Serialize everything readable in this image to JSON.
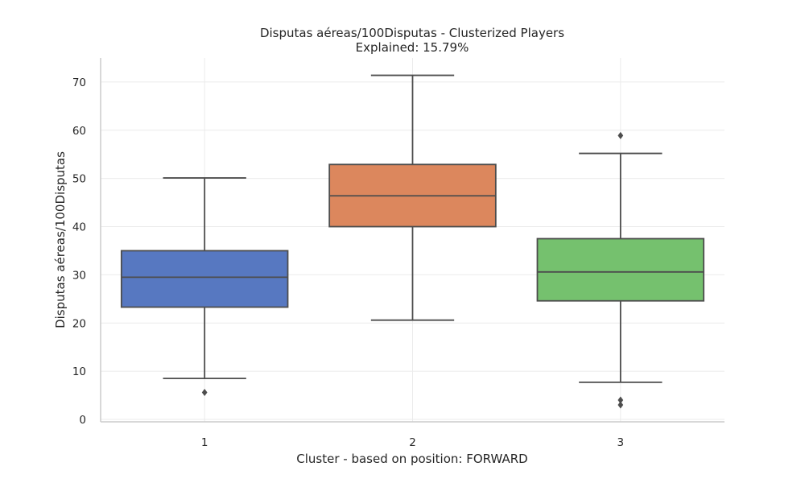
{
  "chart_data": {
    "type": "box",
    "title": "Disputas aéreas/100Disputas - Clusterized Players",
    "subtitle": "Explained: 15.79%",
    "xlabel": "Cluster - based on position: FORWARD",
    "ylabel": "Disputas aéreas/100Disputas",
    "ylim": [
      -0.5,
      75
    ],
    "yticks": [
      0,
      10,
      20,
      30,
      40,
      50,
      60,
      70
    ],
    "grid": true,
    "categories": [
      "1",
      "2",
      "3"
    ],
    "boxes": [
      {
        "category": "1",
        "whisker_low": 8.5,
        "q1": 23.3,
        "median": 29.5,
        "q3": 35.0,
        "whisker_high": 50.1,
        "outliers": [
          5.6
        ],
        "color": "#5778c1"
      },
      {
        "category": "2",
        "whisker_low": 20.6,
        "q1": 40.0,
        "median": 46.4,
        "q3": 52.9,
        "whisker_high": 71.4,
        "outliers": [],
        "color": "#dc875d"
      },
      {
        "category": "3",
        "whisker_low": 7.7,
        "q1": 24.6,
        "median": 30.6,
        "q3": 37.5,
        "whisker_high": 55.2,
        "outliers": [
          58.9,
          4.0,
          3.0
        ],
        "color": "#75c16e"
      }
    ]
  }
}
